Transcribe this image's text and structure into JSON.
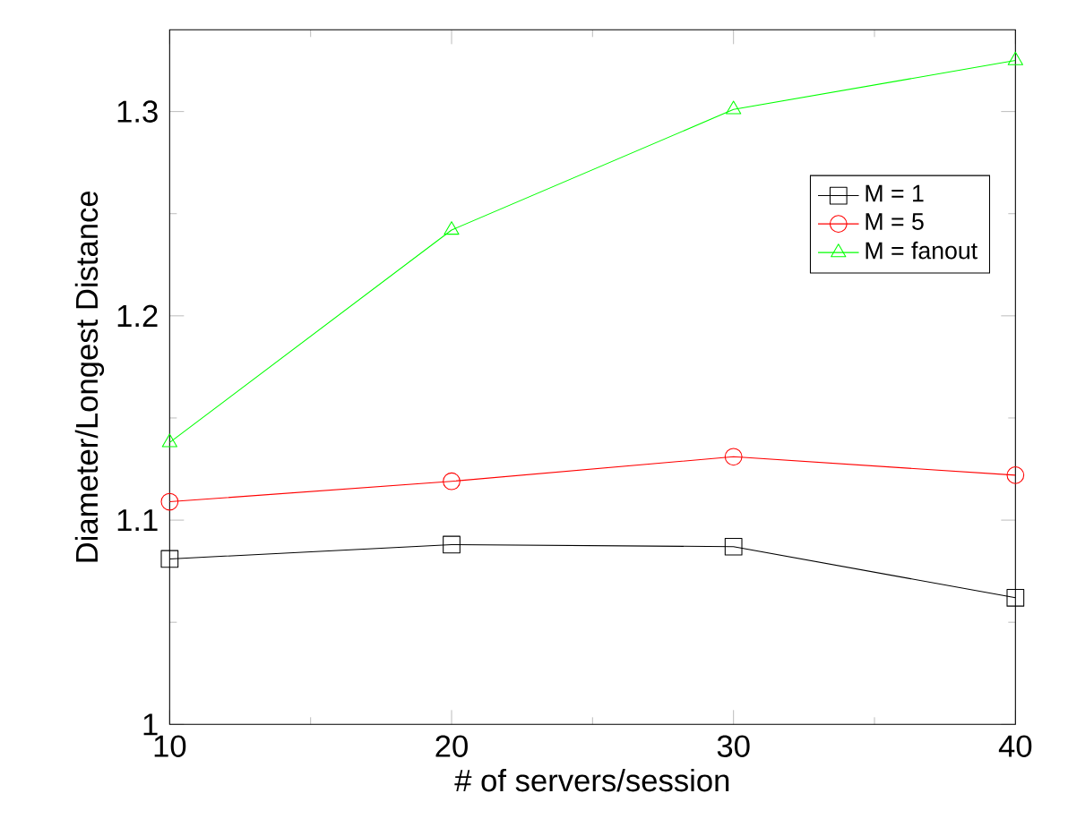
{
  "chart_data": {
    "type": "line",
    "xlabel": "# of servers/session",
    "ylabel": "Diameter/Longest Distance",
    "x": [
      10,
      20,
      30,
      40
    ],
    "series": [
      {
        "name": "M = 1",
        "color": "#000000",
        "marker": "square",
        "values": [
          1.081,
          1.088,
          1.087,
          1.062
        ]
      },
      {
        "name": "M = 5",
        "color": "#ff0000",
        "marker": "circle",
        "values": [
          1.109,
          1.119,
          1.131,
          1.122
        ]
      },
      {
        "name": "M = fanout",
        "color": "#00ff00",
        "marker": "triangle",
        "values": [
          1.138,
          1.242,
          1.301,
          1.325
        ]
      }
    ],
    "xlim": [
      10,
      40
    ],
    "ylim": [
      1,
      1.34
    ],
    "xticks": [
      10,
      20,
      30,
      40
    ],
    "yticks": [
      1,
      1.1,
      1.2,
      1.3
    ],
    "grid": false,
    "legend": "right",
    "line_style": "solid"
  }
}
